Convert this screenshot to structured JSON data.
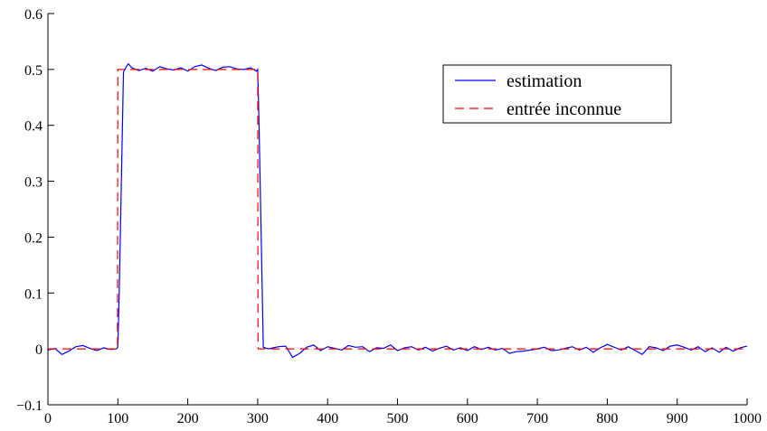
{
  "chart_data": {
    "type": "line",
    "xlim": [
      0,
      1000
    ],
    "ylim": [
      -0.1,
      0.6
    ],
    "x_ticks": [
      0,
      100,
      200,
      300,
      400,
      500,
      600,
      700,
      800,
      900,
      1000
    ],
    "y_ticks": [
      -0.1,
      0,
      0.1,
      0.2,
      0.3,
      0.4,
      0.5,
      0.6
    ],
    "x_tick_labels": [
      "0",
      "100",
      "200",
      "300",
      "400",
      "500",
      "600",
      "700",
      "800",
      "900",
      "1000"
    ],
    "y_tick_labels": [
      "−0.1",
      "0",
      "0.1",
      "0.2",
      "0.3",
      "0.4",
      "0.5",
      "0.6"
    ],
    "grid": false,
    "legend_position": "top-right",
    "series": [
      {
        "name": "estimation",
        "color": "#0000ff",
        "style": "solid",
        "x": [
          0,
          10,
          20,
          30,
          40,
          50,
          60,
          70,
          80,
          90,
          98,
          100,
          102,
          105,
          108,
          112,
          115,
          120,
          130,
          140,
          150,
          160,
          170,
          180,
          190,
          200,
          210,
          220,
          230,
          240,
          250,
          260,
          270,
          280,
          290,
          298,
          300,
          302,
          305,
          308,
          315,
          330,
          340,
          350,
          360,
          370,
          380,
          390,
          400,
          410,
          420,
          430,
          440,
          450,
          460,
          470,
          480,
          490,
          500,
          510,
          520,
          530,
          540,
          550,
          560,
          570,
          580,
          590,
          600,
          610,
          620,
          630,
          640,
          650,
          660,
          670,
          680,
          690,
          700,
          710,
          720,
          730,
          740,
          750,
          760,
          770,
          780,
          790,
          800,
          810,
          820,
          830,
          840,
          850,
          860,
          870,
          880,
          890,
          900,
          910,
          920,
          930,
          940,
          950,
          960,
          970,
          980,
          990,
          1000
        ],
        "y": [
          -0.002,
          0.001,
          -0.01,
          -0.004,
          0.004,
          0.006,
          0.001,
          -0.003,
          0.002,
          -0.001,
          0.0,
          0.003,
          0.1,
          0.3,
          0.495,
          0.505,
          0.51,
          0.503,
          0.498,
          0.502,
          0.497,
          0.505,
          0.501,
          0.499,
          0.503,
          0.497,
          0.505,
          0.508,
          0.502,
          0.498,
          0.504,
          0.505,
          0.501,
          0.5,
          0.503,
          0.497,
          0.5,
          0.4,
          0.2,
          0.003,
          0.0,
          0.004,
          0.005,
          -0.015,
          -0.008,
          0.003,
          0.007,
          -0.003,
          0.004,
          0.001,
          -0.002,
          0.006,
          0.003,
          0.004,
          -0.005,
          0.002,
          0.001,
          0.007,
          -0.003,
          0.002,
          0.004,
          -0.002,
          0.003,
          -0.004,
          0.001,
          0.005,
          -0.002,
          0.002,
          -0.003,
          0.004,
          -0.001,
          0.003,
          -0.002,
          0.001,
          -0.008,
          -0.005,
          -0.004,
          -0.002,
          0.0,
          0.003,
          -0.003,
          -0.002,
          0.001,
          0.004,
          -0.002,
          0.003,
          -0.006,
          0.002,
          0.008,
          0.003,
          -0.002,
          0.004,
          -0.003,
          -0.01,
          0.004,
          0.002,
          -0.003,
          0.005,
          0.007,
          0.003,
          -0.002,
          0.004,
          -0.005,
          0.002,
          -0.006,
          0.003,
          -0.004,
          0.002,
          0.005
        ]
      },
      {
        "name": "entrée inconnue",
        "color": "#ff0000",
        "style": "dashed",
        "x": [
          0,
          99.5,
          100,
          300,
          300.5,
          1000
        ],
        "y": [
          0,
          0,
          0.5,
          0.5,
          0,
          0
        ]
      }
    ]
  }
}
